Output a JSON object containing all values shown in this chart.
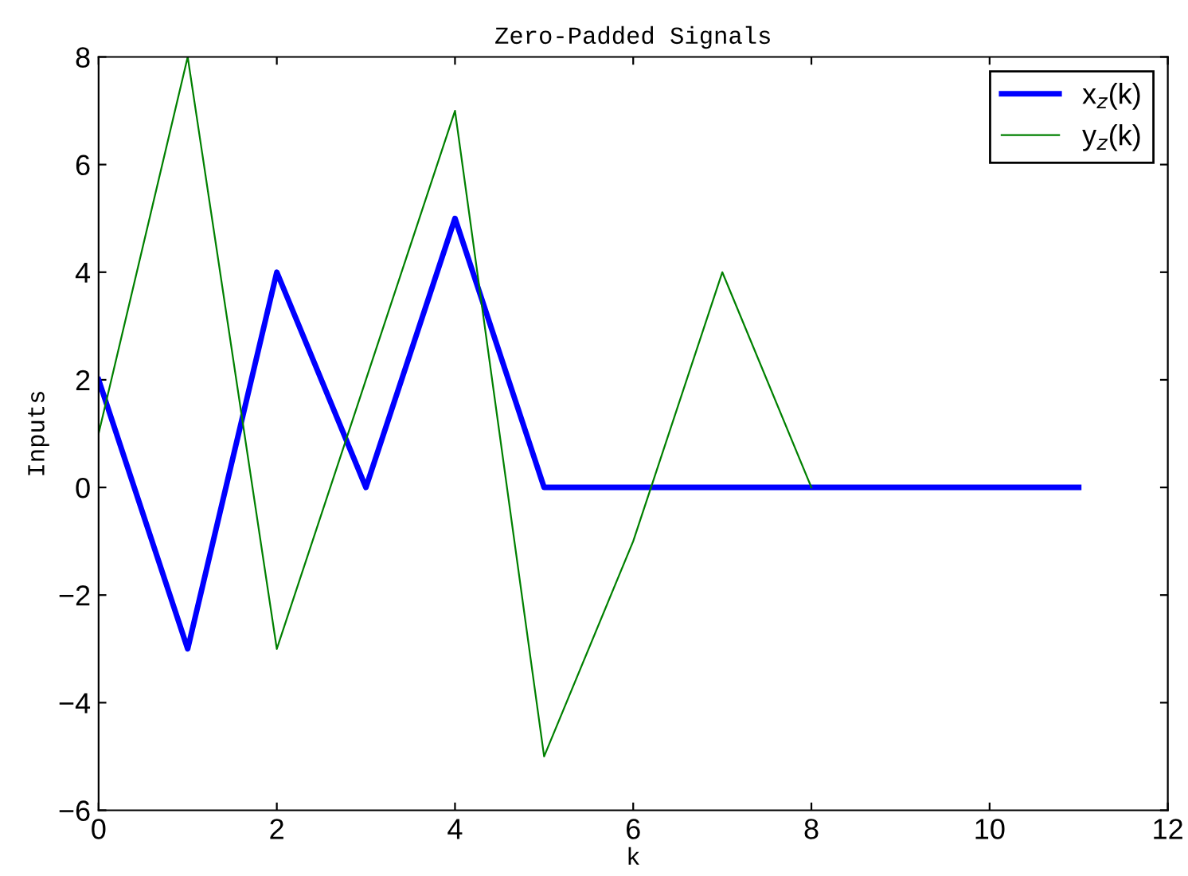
{
  "chart_data": {
    "type": "line",
    "title": "Zero-Padded Signals",
    "xlabel": "k",
    "ylabel": "Inputs",
    "series": [
      {
        "name": "x$_{z}$(k)",
        "color": "#0000ff",
        "x": [
          0,
          1,
          2,
          3,
          4,
          5,
          6,
          7,
          8,
          9,
          10,
          11
        ],
        "values": [
          2,
          -3,
          4,
          0,
          5,
          0,
          0,
          0,
          0,
          0,
          0,
          0
        ]
      },
      {
        "name": "y$_{z}$(k)",
        "color": "#008000",
        "x": [
          0,
          1,
          2,
          3,
          4,
          5,
          6,
          7,
          8
        ],
        "values": [
          1,
          8,
          -3,
          2,
          7,
          -5,
          -1,
          4,
          0
        ]
      }
    ],
    "xlim": [
      0,
      12
    ],
    "xticks": [
      0,
      2,
      4,
      6,
      8,
      10,
      12
    ],
    "ylim": [
      -6,
      8
    ],
    "yticks": [
      -6,
      -4,
      -2,
      0,
      2,
      4,
      6,
      8
    ],
    "grid": false,
    "legend": "top right",
    "marker": "none",
    "line_style": "solid"
  }
}
